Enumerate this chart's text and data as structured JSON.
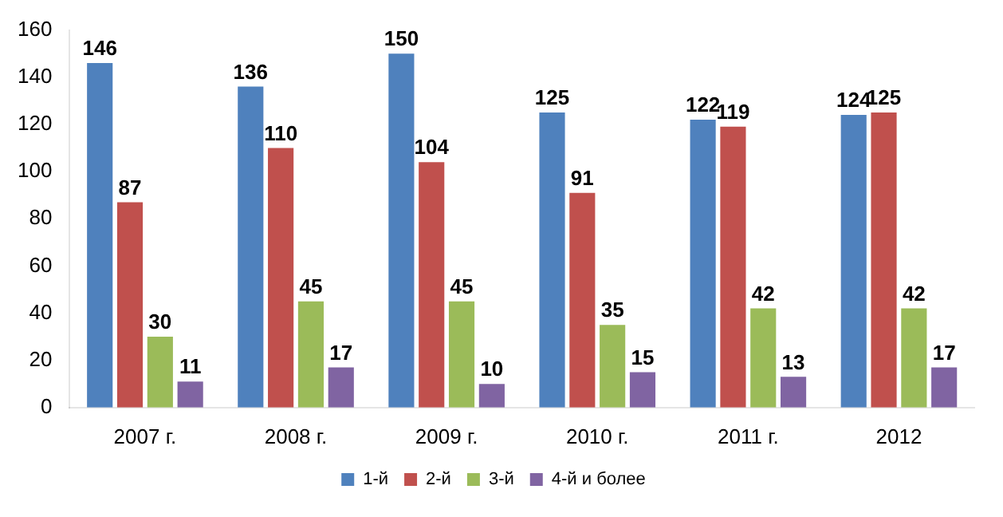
{
  "chart_data": {
    "type": "bar",
    "categories": [
      "2007 г.",
      "2008 г.",
      "2009 г.",
      "2010 г.",
      "2011 г.",
      "2012"
    ],
    "series": [
      {
        "name": "1-й",
        "color": "#4f81bd",
        "values": [
          146,
          136,
          150,
          125,
          122,
          124
        ]
      },
      {
        "name": "2-й",
        "color": "#c0504d",
        "values": [
          87,
          110,
          104,
          91,
          119,
          125
        ]
      },
      {
        "name": "3-й",
        "color": "#9bbb59",
        "values": [
          30,
          45,
          45,
          35,
          42,
          42
        ]
      },
      {
        "name": "4-й и более",
        "color": "#8064a2",
        "values": [
          11,
          17,
          10,
          15,
          13,
          17
        ]
      }
    ],
    "ylim": [
      0,
      160
    ],
    "yticks": [
      0,
      20,
      40,
      60,
      80,
      100,
      120,
      140,
      160
    ],
    "grid": false,
    "legend": "bottom",
    "data_labels": true
  }
}
